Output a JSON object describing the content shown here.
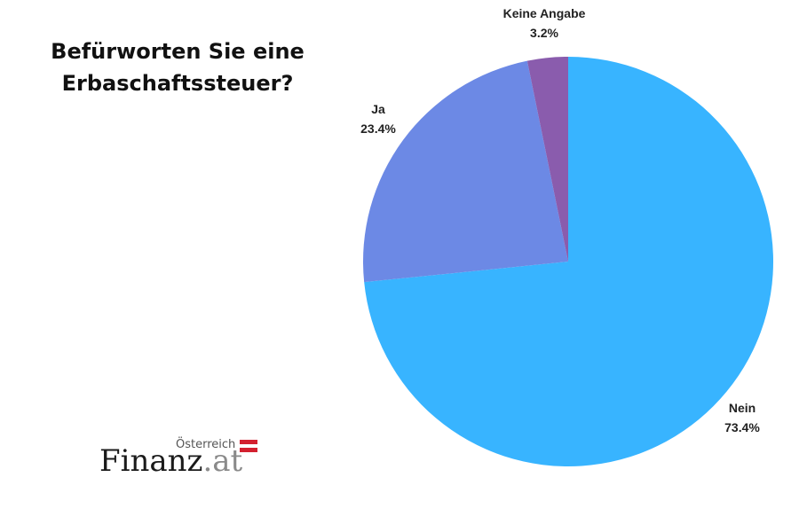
{
  "title": "Befürworten Sie eine Erbaschaftssteuer?",
  "chart_data": {
    "type": "pie",
    "title": "Befürworten Sie eine Erbaschaftssteuer?",
    "start_angle_deg": 0,
    "direction": "clockwise",
    "slices": [
      {
        "label": "Nein",
        "value": 73.4,
        "value_label": "73.4%",
        "color": "#38b4ff"
      },
      {
        "label": "Ja",
        "value": 23.4,
        "value_label": "23.4%",
        "color": "#6c89e5"
      },
      {
        "label": "Keine Angabe",
        "value": 3.2,
        "value_label": "3.2%",
        "color": "#8a5cad"
      }
    ]
  },
  "logo": {
    "country": "Österreich",
    "brand_main": "Finanz",
    "brand_tld": ".at",
    "flag_colors": [
      "#d3202f",
      "#ffffff",
      "#d3202f"
    ]
  }
}
